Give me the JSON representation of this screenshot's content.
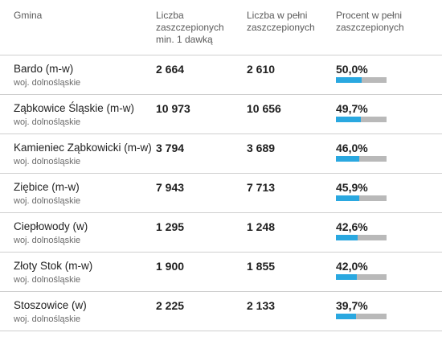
{
  "header": {
    "gmina": "Gmina",
    "col_min1": [
      "Liczba",
      "zaszczepionych",
      "min. 1 dawką"
    ],
    "col_full": [
      "Liczba w pełni",
      "zaszczepionych"
    ],
    "col_pct": [
      "Procent w pełni",
      "zaszczepionych"
    ]
  },
  "colors": {
    "bar_fill": "#2aa8e0",
    "bar_track": "#b9b9b9",
    "divider": "#cfcfcf"
  },
  "rows": [
    {
      "name": "Bardo (m-w)",
      "voivodeship": "woj. dolnośląskie",
      "min1": "2 664",
      "full": "2 610",
      "percent": "50,0%",
      "fraction": 0.5
    },
    {
      "name": "Ząbkowice Śląskie (m-w)",
      "voivodeship": "woj. dolnośląskie",
      "min1": "10 973",
      "full": "10 656",
      "percent": "49,7%",
      "fraction": 0.497
    },
    {
      "name": "Kamieniec Ząbkowicki (m-w)",
      "voivodeship": "woj. dolnośląskie",
      "min1": "3 794",
      "full": "3 689",
      "percent": "46,0%",
      "fraction": 0.46
    },
    {
      "name": "Ziębice (m-w)",
      "voivodeship": "woj. dolnośląskie",
      "min1": "7 943",
      "full": "7 713",
      "percent": "45,9%",
      "fraction": 0.459
    },
    {
      "name": "Ciepłowody (w)",
      "voivodeship": "woj. dolnośląskie",
      "min1": "1 295",
      "full": "1 248",
      "percent": "42,6%",
      "fraction": 0.426
    },
    {
      "name": "Złoty Stok (m-w)",
      "voivodeship": "woj. dolnośląskie",
      "min1": "1 900",
      "full": "1 855",
      "percent": "42,0%",
      "fraction": 0.42
    },
    {
      "name": "Stoszowice (w)",
      "voivodeship": "woj. dolnośląskie",
      "min1": "2 225",
      "full": "2 133",
      "percent": "39,7%",
      "fraction": 0.397
    }
  ]
}
